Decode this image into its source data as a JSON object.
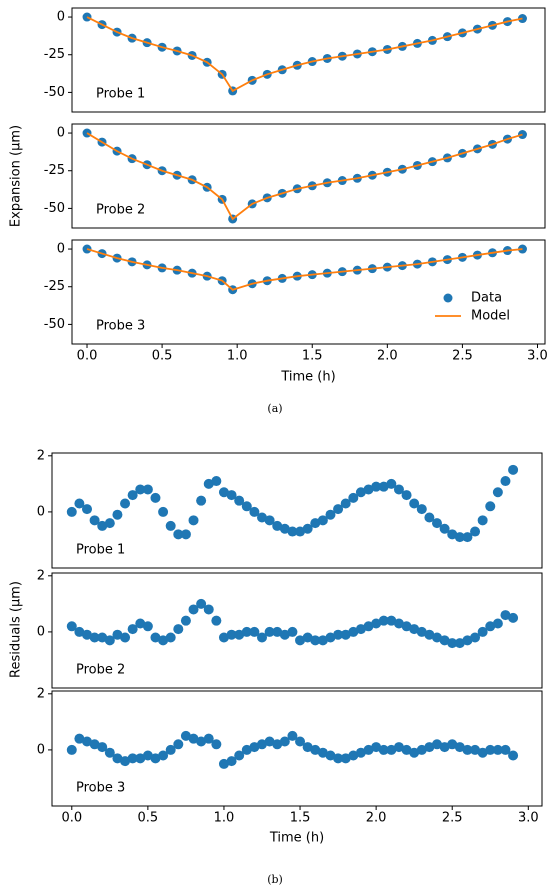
{
  "chart_data": [
    {
      "type": "scatter",
      "caption": "(a)",
      "ylabel": "Expansion (μm)",
      "xlabel": "Time (h)",
      "xlim": [
        -0.1,
        3.05
      ],
      "xticks": [
        {
          "value": 0,
          "label": "0.0"
        },
        0.5,
        {
          "value": 1,
          "label": "1.0"
        },
        1.5,
        {
          "value": 2,
          "label": "2.0"
        },
        2.5,
        {
          "value": 3,
          "label": "3.0"
        }
      ],
      "ylim": [
        -63,
        6
      ],
      "yticks": [
        0,
        -25,
        -50
      ],
      "x": [
        0,
        0.1,
        0.2,
        0.3,
        0.4,
        0.5,
        0.6,
        0.7,
        0.8,
        0.9,
        0.97,
        1.1,
        1.2,
        1.3,
        1.4,
        1.5,
        1.6,
        1.7,
        1.8,
        1.9,
        2.0,
        2.1,
        2.2,
        2.3,
        2.4,
        2.5,
        2.6,
        2.7,
        2.8,
        2.9
      ],
      "panels": [
        {
          "annotation": "Probe 1",
          "series": [
            {
              "type": "scatter",
              "color": "#1f77b4",
              "values": [
                0,
                -5,
                -10,
                -14,
                -17,
                -20,
                -22.5,
                -25.5,
                -30,
                -38,
                -49,
                -42,
                -38,
                -35,
                -32,
                -29.5,
                -27.5,
                -26,
                -24.5,
                -23,
                -21.5,
                -19.5,
                -17.5,
                -15.5,
                -13,
                -10.5,
                -8,
                -5.5,
                -3,
                -1
              ]
            },
            {
              "type": "line",
              "color": "#ff7f0e",
              "values": [
                0,
                -5,
                -10,
                -14,
                -17,
                -20,
                -22.5,
                -25.5,
                -30,
                -38,
                -49,
                -42,
                -38,
                -35,
                -32,
                -29.5,
                -27.5,
                -26,
                -24.5,
                -23,
                -21.5,
                -19.5,
                -17.5,
                -15.5,
                -13,
                -10.5,
                -8,
                -5.5,
                -3,
                -1
              ]
            }
          ]
        },
        {
          "annotation": "Probe 2",
          "series": [
            {
              "type": "scatter",
              "color": "#1f77b4",
              "values": [
                0,
                -6,
                -12,
                -17,
                -21,
                -25,
                -28,
                -31,
                -36,
                -44,
                -57,
                -47,
                -43,
                -40,
                -37,
                -35,
                -33,
                -31.5,
                -30,
                -28,
                -26,
                -24,
                -21.5,
                -19,
                -16.5,
                -13.5,
                -10.5,
                -7.5,
                -4,
                -1
              ]
            },
            {
              "type": "line",
              "color": "#ff7f0e",
              "values": [
                0,
                -6,
                -12,
                -17,
                -21,
                -25,
                -28,
                -31,
                -36,
                -44,
                -57,
                -47,
                -43,
                -40,
                -37,
                -35,
                -33,
                -31.5,
                -30,
                -28,
                -26,
                -24,
                -21.5,
                -19,
                -16.5,
                -13.5,
                -10.5,
                -7.5,
                -4,
                -1
              ]
            }
          ]
        },
        {
          "annotation": "Probe 3",
          "legend": "lower right",
          "series": [
            {
              "type": "scatter",
              "name": "Data",
              "color": "#1f77b4",
              "values": [
                0,
                -3,
                -6,
                -8.5,
                -10.5,
                -12.5,
                -14,
                -16,
                -18,
                -21,
                -27,
                -23,
                -21,
                -19.5,
                -18,
                -17,
                -16,
                -15,
                -14,
                -13,
                -12,
                -11,
                -10,
                -8.5,
                -7,
                -5.5,
                -4,
                -2.5,
                -1,
                0
              ]
            },
            {
              "type": "line",
              "name": "Model",
              "color": "#ff7f0e",
              "values": [
                0,
                -3,
                -6,
                -8.5,
                -10.5,
                -12.5,
                -14,
                -16,
                -18,
                -21,
                -27,
                -23,
                -21,
                -19.5,
                -18,
                -17,
                -16,
                -15,
                -14,
                -13,
                -12,
                -11,
                -10,
                -8.5,
                -7,
                -5.5,
                -4,
                -2.5,
                -1,
                0
              ]
            }
          ]
        }
      ]
    },
    {
      "type": "scatter",
      "caption": "(b)",
      "ylabel": "Residuals (μm)",
      "xlabel": "Time (h)",
      "xlim": [
        -0.13,
        3.09
      ],
      "xticks": [
        {
          "value": 0,
          "label": "0.0"
        },
        0.5,
        {
          "value": 1,
          "label": "1.0"
        },
        1.5,
        {
          "value": 2,
          "label": "2.0"
        },
        2.5,
        {
          "value": 3,
          "label": "3.0"
        }
      ],
      "ylim": [
        -2,
        2.1
      ],
      "yticks": [
        0,
        2
      ],
      "x": [
        0,
        0.05,
        0.1,
        0.15,
        0.2,
        0.25,
        0.3,
        0.35,
        0.4,
        0.45,
        0.5,
        0.55,
        0.6,
        0.65,
        0.7,
        0.75,
        0.8,
        0.85,
        0.9,
        0.95,
        1.0,
        1.05,
        1.1,
        1.15,
        1.2,
        1.25,
        1.3,
        1.35,
        1.4,
        1.45,
        1.5,
        1.55,
        1.6,
        1.65,
        1.7,
        1.75,
        1.8,
        1.85,
        1.9,
        1.95,
        2.0,
        2.05,
        2.1,
        2.15,
        2.2,
        2.25,
        2.3,
        2.35,
        2.4,
        2.45,
        2.5,
        2.55,
        2.6,
        2.65,
        2.7,
        2.75,
        2.8,
        2.85,
        2.9
      ],
      "panels": [
        {
          "annotation": "Probe 1",
          "series": [
            {
              "type": "scatter",
              "color": "#1f77b4",
              "values": [
                0,
                0.3,
                0.1,
                -0.3,
                -0.5,
                -0.4,
                -0.1,
                0.3,
                0.6,
                0.8,
                0.8,
                0.5,
                0,
                -0.5,
                -0.8,
                -0.8,
                -0.3,
                0.4,
                1.0,
                1.1,
                0.7,
                0.6,
                0.4,
                0.2,
                0,
                -0.2,
                -0.3,
                -0.5,
                -0.6,
                -0.7,
                -0.7,
                -0.6,
                -0.4,
                -0.3,
                -0.1,
                0.1,
                0.3,
                0.5,
                0.7,
                0.8,
                0.9,
                0.9,
                1.0,
                0.8,
                0.6,
                0.3,
                0.1,
                -0.2,
                -0.4,
                -0.6,
                -0.8,
                -0.9,
                -0.9,
                -0.7,
                -0.3,
                0.2,
                0.7,
                1.1,
                1.5
              ]
            }
          ]
        },
        {
          "annotation": "Probe 2",
          "series": [
            {
              "type": "scatter",
              "color": "#1f77b4",
              "values": [
                0.2,
                0,
                -0.1,
                -0.2,
                -0.2,
                -0.3,
                -0.1,
                -0.2,
                0.1,
                0.3,
                0.2,
                -0.2,
                -0.3,
                -0.2,
                0.1,
                0.4,
                0.8,
                1.0,
                0.8,
                0.4,
                -0.2,
                -0.1,
                -0.1,
                0,
                0,
                -0.2,
                0,
                0,
                -0.1,
                0,
                -0.3,
                -0.2,
                -0.3,
                -0.3,
                -0.2,
                -0.1,
                -0.1,
                0,
                0.1,
                0.2,
                0.3,
                0.4,
                0.4,
                0.3,
                0.2,
                0.1,
                0,
                -0.1,
                -0.2,
                -0.3,
                -0.4,
                -0.4,
                -0.3,
                -0.2,
                0,
                0.2,
                0.3,
                0.6,
                0.5
              ]
            }
          ]
        },
        {
          "annotation": "Probe 3",
          "series": [
            {
              "type": "scatter",
              "color": "#1f77b4",
              "values": [
                0,
                0.4,
                0.3,
                0.2,
                0.1,
                -0.1,
                -0.3,
                -0.4,
                -0.3,
                -0.3,
                -0.2,
                -0.3,
                -0.2,
                0,
                0.2,
                0.5,
                0.4,
                0.3,
                0.4,
                0.2,
                -0.5,
                -0.4,
                -0.2,
                0,
                0.1,
                0.2,
                0.3,
                0.2,
                0.3,
                0.5,
                0.3,
                0.1,
                0,
                -0.1,
                -0.2,
                -0.3,
                -0.3,
                -0.2,
                -0.1,
                0,
                0.1,
                0,
                0,
                0.1,
                0,
                -0.1,
                0,
                0.1,
                0.2,
                0.1,
                0.2,
                0.1,
                0,
                0,
                -0.1,
                0,
                0,
                0,
                -0.2
              ]
            }
          ]
        }
      ]
    }
  ]
}
